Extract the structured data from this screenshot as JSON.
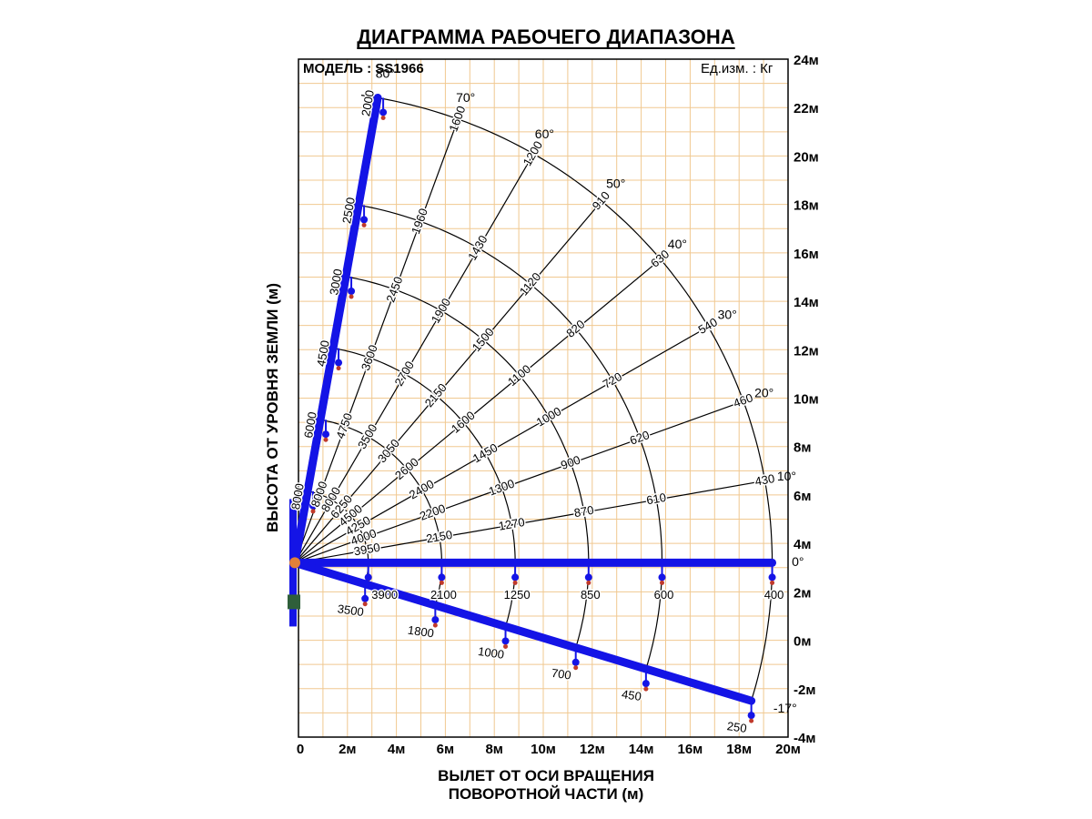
{
  "title": "ДИАГРАММА РАБОЧЕГО ДИАПАЗОНА",
  "model": "МОДЕЛЬ : SS1966",
  "units": "Ед.изм. : Кг",
  "ylabel": "ВЫСОТА ОТ УРОВНЯ ЗЕМЛИ (м)",
  "xlabel_line1": "ВЫЛЕТ ОТ ОСИ ВРАЩЕНИЯ",
  "xlabel_line2": "ПОВОРОТНОЙ ЧАСТИ (м)",
  "colors": {
    "grid": "#f0c890",
    "boom": "#1414e6",
    "arc": "#000000",
    "hook": "#c0392b"
  },
  "chart_data": {
    "type": "load-chart",
    "x_ticks": [
      "0",
      "2м",
      "4м",
      "6м",
      "8м",
      "10м",
      "12м",
      "14м",
      "16м",
      "18м",
      "20м"
    ],
    "y_ticks": [
      "24м",
      "22м",
      "20м",
      "18м",
      "16м",
      "14м",
      "12м",
      "10м",
      "8м",
      "6м",
      "4м",
      "2м",
      "0м",
      "-2м",
      "-4м"
    ],
    "xlim": [
      0,
      20
    ],
    "ylim": [
      -4,
      24
    ],
    "pivot": [
      0,
      3.2
    ],
    "arc_radii": [
      3,
      6,
      9,
      12,
      15,
      19.5
    ],
    "angles": [
      {
        "label": "80°",
        "deg": 80
      },
      {
        "label": "70°",
        "deg": 70
      },
      {
        "label": "60°",
        "deg": 60
      },
      {
        "label": "50°",
        "deg": 50
      },
      {
        "label": "40°",
        "deg": 40
      },
      {
        "label": "30°",
        "deg": 30
      },
      {
        "label": "20°",
        "deg": 20
      },
      {
        "label": "10°",
        "deg": 10
      },
      {
        "label": "0°",
        "deg": 0
      },
      {
        "label": "-17°",
        "deg": -17
      }
    ],
    "loads": [
      {
        "deg": 80,
        "values": [
          "8000",
          "6000",
          "4500",
          "3000",
          "2500",
          "2000"
        ]
      },
      {
        "deg": 70,
        "values": [
          "8000",
          "4750",
          "3600",
          "2450",
          "1960",
          "1600"
        ]
      },
      {
        "deg": 60,
        "values": [
          "8000",
          "3500",
          "2700",
          "1900",
          "1430",
          "1200"
        ]
      },
      {
        "deg": 50,
        "values": [
          "6250",
          "3050",
          "2150",
          "1500",
          "1120",
          "910"
        ]
      },
      {
        "deg": 40,
        "values": [
          "4500",
          "2600",
          "1600",
          "1100",
          "820",
          "630"
        ]
      },
      {
        "deg": 30,
        "values": [
          "4250",
          "2400",
          "1450",
          "1000",
          "720",
          "540"
        ]
      },
      {
        "deg": 20,
        "values": [
          "4000",
          "2200",
          "1300",
          "900",
          "620",
          "460"
        ]
      },
      {
        "deg": 10,
        "values": [
          "3950",
          "2150",
          "1270",
          "870",
          "610",
          "430"
        ]
      },
      {
        "deg": 0,
        "values": [
          "3900",
          "2100",
          "1250",
          "850",
          "600",
          "400"
        ]
      },
      {
        "deg": -17,
        "values": [
          "3500",
          "1800",
          "1000",
          "700",
          "450",
          "250"
        ]
      }
    ]
  }
}
